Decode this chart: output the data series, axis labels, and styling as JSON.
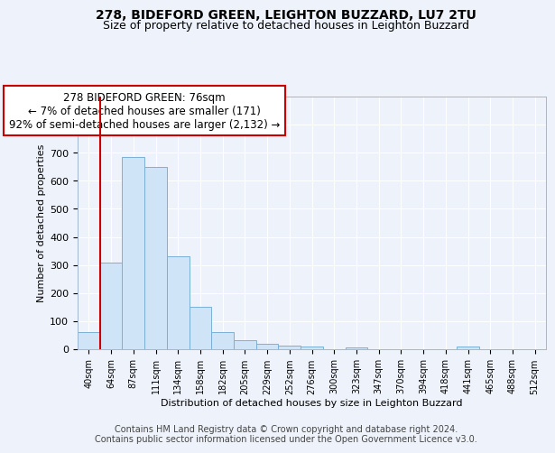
{
  "title1": "278, BIDEFORD GREEN, LEIGHTON BUZZARD, LU7 2TU",
  "title2": "Size of property relative to detached houses in Leighton Buzzard",
  "xlabel": "Distribution of detached houses by size in Leighton Buzzard",
  "ylabel": "Number of detached properties",
  "footer1": "Contains HM Land Registry data © Crown copyright and database right 2024.",
  "footer2": "Contains public sector information licensed under the Open Government Licence v3.0.",
  "bin_labels": [
    "40sqm",
    "64sqm",
    "87sqm",
    "111sqm",
    "134sqm",
    "158sqm",
    "182sqm",
    "205sqm",
    "229sqm",
    "252sqm",
    "276sqm",
    "300sqm",
    "323sqm",
    "347sqm",
    "370sqm",
    "394sqm",
    "418sqm",
    "441sqm",
    "465sqm",
    "488sqm",
    "512sqm"
  ],
  "bar_values": [
    62,
    310,
    685,
    650,
    330,
    150,
    62,
    32,
    20,
    12,
    10,
    0,
    8,
    0,
    0,
    0,
    0,
    10,
    0,
    0,
    0
  ],
  "bar_color": "#d0e4f7",
  "bar_edge_color": "#7ab0d4",
  "vline_x": 0.5,
  "annotation_text": "278 BIDEFORD GREEN: 76sqm\n← 7% of detached houses are smaller (171)\n92% of semi-detached houses are larger (2,132) →",
  "annotation_box_color": "#ffffff",
  "annotation_box_edge": "#cc0000",
  "vline_color": "#cc0000",
  "ylim": [
    0,
    900
  ],
  "yticks": [
    0,
    100,
    200,
    300,
    400,
    500,
    600,
    700,
    800,
    900
  ],
  "background_color": "#eef2fa",
  "grid_color": "#ffffff",
  "title1_fontsize": 10,
  "title2_fontsize": 9,
  "footer_fontsize": 7
}
